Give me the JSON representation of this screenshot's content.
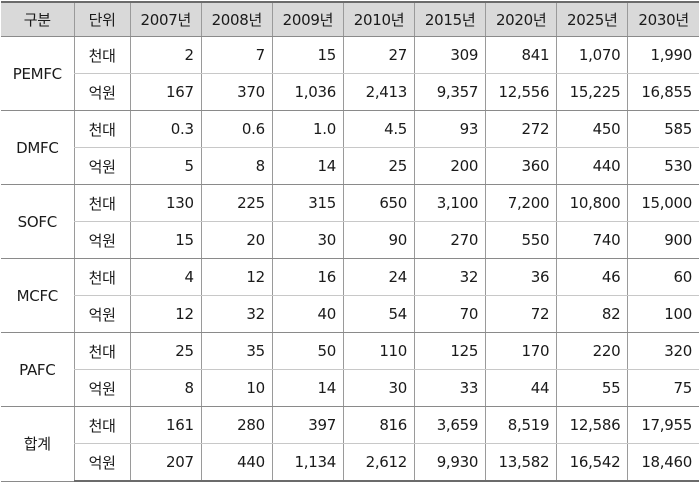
{
  "table": {
    "headers": [
      "구분",
      "단위",
      "2007년",
      "2008년",
      "2009년",
      "2010년",
      "2015년",
      "2020년",
      "2025년",
      "2030년"
    ],
    "groups": [
      {
        "name": "PEMFC",
        "rows": [
          {
            "unit": "천대",
            "values": [
              "2",
              "7",
              "15",
              "27",
              "309",
              "841",
              "1,070",
              "1,990"
            ]
          },
          {
            "unit": "억원",
            "values": [
              "167",
              "370",
              "1,036",
              "2,413",
              "9,357",
              "12,556",
              "15,225",
              "16,855"
            ]
          }
        ]
      },
      {
        "name": "DMFC",
        "rows": [
          {
            "unit": "천대",
            "values": [
              "0.3",
              "0.6",
              "1.0",
              "4.5",
              "93",
              "272",
              "450",
              "585"
            ]
          },
          {
            "unit": "억원",
            "values": [
              "5",
              "8",
              "14",
              "25",
              "200",
              "360",
              "440",
              "530"
            ]
          }
        ]
      },
      {
        "name": "SOFC",
        "rows": [
          {
            "unit": "천대",
            "values": [
              "130",
              "225",
              "315",
              "650",
              "3,100",
              "7,200",
              "10,800",
              "15,000"
            ]
          },
          {
            "unit": "억원",
            "values": [
              "15",
              "20",
              "30",
              "90",
              "270",
              "550",
              "740",
              "900"
            ]
          }
        ]
      },
      {
        "name": "MCFC",
        "rows": [
          {
            "unit": "천대",
            "values": [
              "4",
              "12",
              "16",
              "24",
              "32",
              "36",
              "46",
              "60"
            ]
          },
          {
            "unit": "억원",
            "values": [
              "12",
              "32",
              "40",
              "54",
              "70",
              "72",
              "82",
              "100"
            ]
          }
        ]
      },
      {
        "name": "PAFC",
        "rows": [
          {
            "unit": "천대",
            "values": [
              "25",
              "35",
              "50",
              "110",
              "125",
              "170",
              "220",
              "320"
            ]
          },
          {
            "unit": "억원",
            "values": [
              "8",
              "10",
              "14",
              "30",
              "33",
              "44",
              "55",
              "75"
            ]
          }
        ]
      },
      {
        "name": "합계",
        "rows": [
          {
            "unit": "천대",
            "values": [
              "161",
              "280",
              "397",
              "816",
              "3,659",
              "8,519",
              "12,586",
              "17,955"
            ]
          },
          {
            "unit": "억원",
            "values": [
              "207",
              "440",
              "1,134",
              "2,612",
              "9,930",
              "13,582",
              "16,542",
              "18,460"
            ]
          }
        ]
      }
    ]
  }
}
